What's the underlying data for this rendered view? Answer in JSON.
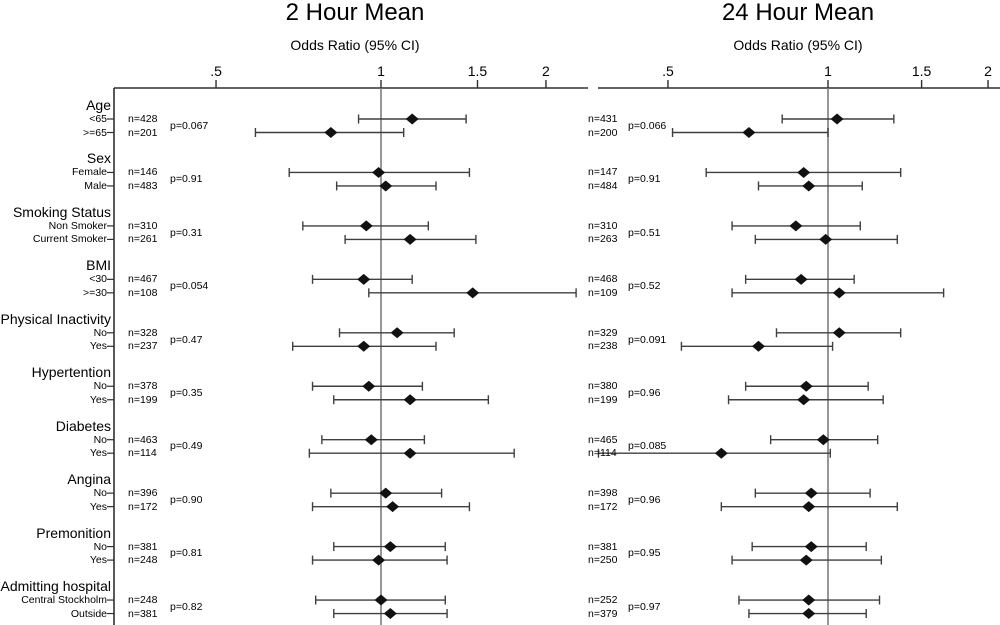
{
  "chart_data": {
    "type": "forest",
    "scale": "log",
    "panels": [
      {
        "title": "2 Hour Mean",
        "axis_label": "Odds Ratio (95% CI)",
        "ticks": [
          {
            "label": ".5",
            "value": 0.5
          },
          {
            "label": "1",
            "value": 1
          },
          {
            "label": "1.5",
            "value": 1.5
          },
          {
            "label": "2",
            "value": 2
          }
        ]
      },
      {
        "title": "24 Hour Mean",
        "axis_label": "Odds Ratio (95% CI)",
        "ticks": [
          {
            "label": ".5",
            "value": 0.5
          },
          {
            "label": "1",
            "value": 1
          },
          {
            "label": "1.5",
            "value": 1.5
          },
          {
            "label": "2",
            "value": 2
          }
        ]
      }
    ],
    "groups": [
      {
        "label": "Age",
        "p": [
          "p=0.067",
          "p=0.066"
        ],
        "rows": [
          {
            "label": "<65",
            "estimates": [
              {
                "n": "n=428",
                "or": 1.14,
                "lo": 0.91,
                "hi": 1.43
              },
              {
                "n": "n=431",
                "or": 1.04,
                "lo": 0.82,
                "hi": 1.33
              }
            ]
          },
          {
            "label": ">=65",
            "estimates": [
              {
                "n": "n=201",
                "or": 0.81,
                "lo": 0.59,
                "hi": 1.1
              },
              {
                "n": "n=200",
                "or": 0.71,
                "lo": 0.51,
                "hi": 1.0
              }
            ]
          }
        ]
      },
      {
        "label": "Sex",
        "p": [
          "p=0.91",
          "p=0.91"
        ],
        "rows": [
          {
            "label": "Female",
            "estimates": [
              {
                "n": "n=146",
                "or": 0.99,
                "lo": 0.68,
                "hi": 1.45
              },
              {
                "n": "n=147",
                "or": 0.9,
                "lo": 0.59,
                "hi": 1.37
              }
            ]
          },
          {
            "label": "Male",
            "estimates": [
              {
                "n": "n=483",
                "or": 1.02,
                "lo": 0.83,
                "hi": 1.26
              },
              {
                "n": "n=484",
                "or": 0.92,
                "lo": 0.74,
                "hi": 1.16
              }
            ]
          }
        ]
      },
      {
        "label": "Smoking Status",
        "p": [
          "p=0.31",
          "p=0.51"
        ],
        "rows": [
          {
            "label": "Non Smoker",
            "estimates": [
              {
                "n": "n=310",
                "or": 0.94,
                "lo": 0.72,
                "hi": 1.22
              },
              {
                "n": "n=310",
                "or": 0.87,
                "lo": 0.66,
                "hi": 1.15
              }
            ]
          },
          {
            "label": "Current Smoker",
            "estimates": [
              {
                "n": "n=261",
                "or": 1.13,
                "lo": 0.86,
                "hi": 1.49
              },
              {
                "n": "n=263",
                "or": 0.99,
                "lo": 0.73,
                "hi": 1.35
              }
            ]
          }
        ]
      },
      {
        "label": "BMI",
        "p": [
          "p=0.054",
          "p=0.52"
        ],
        "rows": [
          {
            "label": "<30",
            "estimates": [
              {
                "n": "n=467",
                "or": 0.93,
                "lo": 0.75,
                "hi": 1.14
              },
              {
                "n": "n=468",
                "or": 0.89,
                "lo": 0.7,
                "hi": 1.12
              }
            ]
          },
          {
            "label": ">=30",
            "estimates": [
              {
                "n": "n=108",
                "or": 1.47,
                "lo": 0.95,
                "hi": 2.27
              },
              {
                "n": "n=109",
                "or": 1.05,
                "lo": 0.66,
                "hi": 1.65
              }
            ]
          }
        ]
      },
      {
        "label": "Physical Inactivity",
        "p": [
          "p=0.47",
          "p=0.091"
        ],
        "rows": [
          {
            "label": "No",
            "estimates": [
              {
                "n": "n=328",
                "or": 1.07,
                "lo": 0.84,
                "hi": 1.36
              },
              {
                "n": "n=329",
                "or": 1.05,
                "lo": 0.8,
                "hi": 1.37
              }
            ]
          },
          {
            "label": "Yes",
            "estimates": [
              {
                "n": "n=237",
                "or": 0.93,
                "lo": 0.69,
                "hi": 1.26
              },
              {
                "n": "n=238",
                "or": 0.74,
                "lo": 0.53,
                "hi": 1.02
              }
            ]
          }
        ]
      },
      {
        "label": "Hypertention",
        "p": [
          "p=0.35",
          "p=0.96"
        ],
        "rows": [
          {
            "label": "No",
            "estimates": [
              {
                "n": "n=378",
                "or": 0.95,
                "lo": 0.75,
                "hi": 1.19
              },
              {
                "n": "n=380",
                "or": 0.91,
                "lo": 0.7,
                "hi": 1.19
              }
            ]
          },
          {
            "label": "Yes",
            "estimates": [
              {
                "n": "n=199",
                "or": 1.13,
                "lo": 0.82,
                "hi": 1.57
              },
              {
                "n": "n=199",
                "or": 0.9,
                "lo": 0.65,
                "hi": 1.27
              }
            ]
          }
        ]
      },
      {
        "label": "Diabetes",
        "p": [
          "p=0.49",
          "p=0.085"
        ],
        "rows": [
          {
            "label": "No",
            "estimates": [
              {
                "n": "n=463",
                "or": 0.96,
                "lo": 0.78,
                "hi": 1.2
              },
              {
                "n": "n=465",
                "or": 0.98,
                "lo": 0.78,
                "hi": 1.24
              }
            ]
          },
          {
            "label": "Yes",
            "estimates": [
              {
                "n": "n=114",
                "or": 1.13,
                "lo": 0.74,
                "hi": 1.75
              },
              {
                "n": "n=114",
                "or": 0.63,
                "lo": 0.37,
                "hi": 1.01
              }
            ]
          }
        ]
      },
      {
        "label": "Angina",
        "p": [
          "p=0.90",
          "p=0.96"
        ],
        "rows": [
          {
            "label": "No",
            "estimates": [
              {
                "n": "n=396",
                "or": 1.02,
                "lo": 0.81,
                "hi": 1.29
              },
              {
                "n": "n=398",
                "or": 0.93,
                "lo": 0.73,
                "hi": 1.2
              }
            ]
          },
          {
            "label": "Yes",
            "estimates": [
              {
                "n": "n=172",
                "or": 1.05,
                "lo": 0.75,
                "hi": 1.45
              },
              {
                "n": "n=172",
                "or": 0.92,
                "lo": 0.63,
                "hi": 1.35
              }
            ]
          }
        ]
      },
      {
        "label": "Premonition",
        "p": [
          "p=0.81",
          "p=0.95"
        ],
        "rows": [
          {
            "label": "No",
            "estimates": [
              {
                "n": "n=381",
                "or": 1.04,
                "lo": 0.82,
                "hi": 1.31
              },
              {
                "n": "n=381",
                "or": 0.93,
                "lo": 0.72,
                "hi": 1.18
              }
            ]
          },
          {
            "label": "Yes",
            "estimates": [
              {
                "n": "n=248",
                "or": 0.99,
                "lo": 0.75,
                "hi": 1.32
              },
              {
                "n": "n=250",
                "or": 0.91,
                "lo": 0.66,
                "hi": 1.26
              }
            ]
          }
        ]
      },
      {
        "label": "Admitting hospital",
        "p": [
          "p=0.82",
          "p=0.97"
        ],
        "rows": [
          {
            "label": "Central Stockholm",
            "estimates": [
              {
                "n": "n=248",
                "or": 1.0,
                "lo": 0.76,
                "hi": 1.31
              },
              {
                "n": "n=252",
                "or": 0.92,
                "lo": 0.68,
                "hi": 1.25
              }
            ]
          },
          {
            "label": "Outside",
            "estimates": [
              {
                "n": "n=381",
                "or": 1.04,
                "lo": 0.82,
                "hi": 1.32
              },
              {
                "n": "n=379",
                "or": 0.92,
                "lo": 0.71,
                "hi": 1.18
              }
            ]
          }
        ]
      }
    ],
    "colors": {
      "text": "#000000",
      "axis_line": "#2f2f2f",
      "ci_line": "#3f3f3f",
      "diamond": "#111111",
      "ref_line": "#7d7d7d"
    }
  }
}
